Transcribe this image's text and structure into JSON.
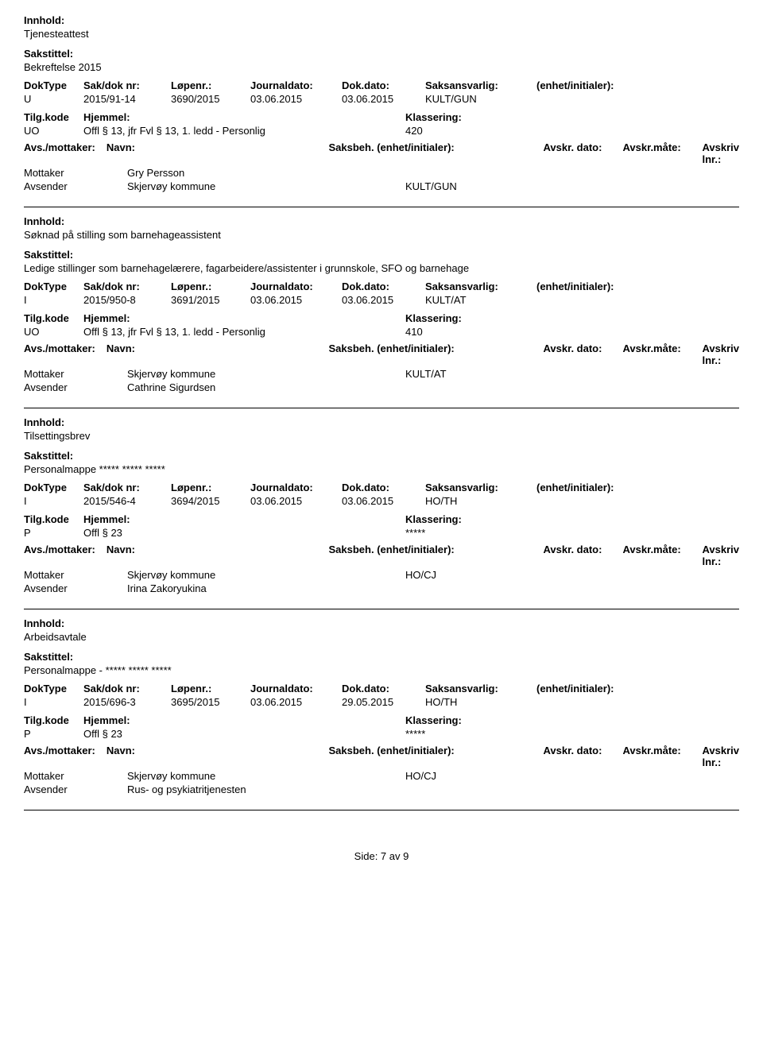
{
  "labels": {
    "innhold": "Innhold:",
    "sakstittel": "Sakstittel:",
    "doktype": "DokType",
    "sakdoknr": "Sak/dok nr:",
    "lopenr": "Løpenr.:",
    "journaldato": "Journaldato:",
    "dokdato": "Dok.dato:",
    "saksansvarlig": "Saksansvarlig:",
    "enhet": "(enhet/initialer):",
    "tilgkode": "Tilg.kode",
    "hjemmel": "Hjemmel:",
    "klassering": "Klassering:",
    "avsmottaker": "Avs./mottaker:",
    "navn": "Navn:",
    "saksbeh": "Saksbeh.",
    "saksbeh_enhet": "(enhet/initialer):",
    "avskrdato": "Avskr. dato:",
    "avskrmate": "Avskr.måte:",
    "avskrivlnr": "Avskriv lnr.:",
    "mottaker": "Mottaker",
    "avsender": "Avsender"
  },
  "entries": [
    {
      "innhold": "Tjenesteattest",
      "sakstittel": "Bekreftelse 2015",
      "doktype": "U",
      "sakdoknr": "2015/91-14",
      "lopenr": "3690/2015",
      "journaldato": "03.06.2015",
      "dokdato": "03.06.2015",
      "saksansvarlig": "KULT/GUN",
      "tilg": "UO",
      "hjemmel": "Offl § 13, jfr Fvl § 13, 1. ledd - Personlig",
      "klassering": "420",
      "mottaker": "Gry Persson",
      "mottaker_saksbeh": "",
      "avsender": "Skjervøy kommune",
      "avsender_saksbeh": "KULT/GUN"
    },
    {
      "innhold": "Søknad på stilling som barnehageassistent",
      "sakstittel": "Ledige stillinger som barnehagelærere, fagarbeidere/assistenter i grunnskole, SFO og barnehage",
      "doktype": "I",
      "sakdoknr": "2015/950-8",
      "lopenr": "3691/2015",
      "journaldato": "03.06.2015",
      "dokdato": "03.06.2015",
      "saksansvarlig": "KULT/AT",
      "tilg": "UO",
      "hjemmel": "Offl § 13, jfr Fvl § 13, 1. ledd - Personlig",
      "klassering": "410",
      "mottaker": "Skjervøy kommune",
      "mottaker_saksbeh": "KULT/AT",
      "avsender": "Cathrine Sigurdsen",
      "avsender_saksbeh": ""
    },
    {
      "innhold": "Tilsettingsbrev",
      "sakstittel": "Personalmappe ***** ***** *****",
      "doktype": "I",
      "sakdoknr": "2015/546-4",
      "lopenr": "3694/2015",
      "journaldato": "03.06.2015",
      "dokdato": "03.06.2015",
      "saksansvarlig": "HO/TH",
      "tilg": "P",
      "hjemmel": "Offl § 23",
      "klassering": "*****",
      "mottaker": "Skjervøy kommune",
      "mottaker_saksbeh": "HO/CJ",
      "avsender": "Irina Zakoryukina",
      "avsender_saksbeh": ""
    },
    {
      "innhold": "Arbeidsavtale",
      "sakstittel": "Personalmappe - ***** ***** *****",
      "doktype": "I",
      "sakdoknr": "2015/696-3",
      "lopenr": "3695/2015",
      "journaldato": "03.06.2015",
      "dokdato": "29.05.2015",
      "saksansvarlig": "HO/TH",
      "tilg": "P",
      "hjemmel": "Offl § 23",
      "klassering": "*****",
      "mottaker": "Skjervøy kommune",
      "mottaker_saksbeh": "HO/CJ",
      "avsender": "Rus- og psykiatritjenesten",
      "avsender_saksbeh": ""
    }
  ],
  "footer": {
    "text": "Side: 7 av 9"
  }
}
